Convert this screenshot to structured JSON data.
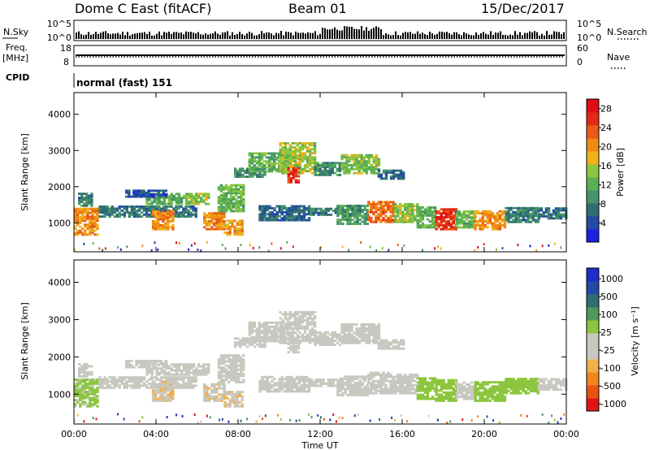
{
  "header": {
    "station": "Dome C East (fitACF)",
    "beam": "Beam 01",
    "date": "15/Dec/2017"
  },
  "panels": {
    "nsky_label": "N.Sky",
    "nsearch_label": "N.Search",
    "nsky_ticks": [
      "10^5",
      "10^0"
    ],
    "nsearch_ticks": [
      "10^5",
      "10^0"
    ],
    "freq_label_1": "Freq.",
    "freq_label_2": "[MHz]",
    "freq_ticks": [
      "18",
      "8"
    ],
    "nave_label": "Nave",
    "nave_ticks": [
      "60",
      "0"
    ],
    "cpid_label": "CPID",
    "cpid_value": "normal (fast) 151"
  },
  "colors": {
    "power": [
      "#1d20e0",
      "#234aa6",
      "#2f6f73",
      "#47936a",
      "#5ab054",
      "#8cc63e",
      "#f0b21b",
      "#f08a14",
      "#eb5a17",
      "#e32a16",
      "#e00d12"
    ],
    "velocity": [
      "#e01414",
      "#ea5212",
      "#f0861c",
      "#f2b04a",
      "#c8c8c0",
      "#c8c8c0",
      "#8cc63e",
      "#4e9a5c",
      "#2f6f73",
      "#234aa6",
      "#1d2fc8"
    ]
  },
  "chart_data": [
    {
      "type": "heatmap",
      "name": "power",
      "ylabel": "Slant Range [km]",
      "y_ticks": [
        "1000",
        "2000",
        "3000",
        "4000"
      ],
      "ylim": [
        200,
        4600
      ],
      "x_ticks": [
        "00:00",
        "04:00",
        "08:00",
        "12:00",
        "16:00",
        "20:00",
        "00:00"
      ],
      "xlim": [
        0,
        24
      ],
      "colorbar": {
        "label": "Power [dB]",
        "ticks": [
          "4",
          "8",
          "12",
          "16",
          "20",
          "24",
          "28"
        ],
        "range": [
          0,
          30
        ]
      },
      "regions": [
        {
          "t0": 0.0,
          "t1": 1.2,
          "r0": 650,
          "r1": 1400,
          "v": 20
        },
        {
          "t0": 0.2,
          "t1": 0.9,
          "r0": 1450,
          "r1": 1800,
          "v": 8
        },
        {
          "t0": 1.2,
          "t1": 6.0,
          "r0": 1150,
          "r1": 1450,
          "v": 7
        },
        {
          "t0": 3.5,
          "t1": 5.3,
          "r0": 1500,
          "r1": 1800,
          "v": 12
        },
        {
          "t0": 5.3,
          "t1": 6.6,
          "r0": 1500,
          "r1": 1800,
          "v": 14
        },
        {
          "t0": 2.5,
          "t1": 4.5,
          "r0": 1700,
          "r1": 1900,
          "v": 5
        },
        {
          "t0": 3.8,
          "t1": 4.8,
          "r0": 800,
          "r1": 1350,
          "v": 20
        },
        {
          "t0": 6.3,
          "t1": 7.3,
          "r0": 800,
          "r1": 1250,
          "v": 21
        },
        {
          "t0": 7.3,
          "t1": 8.2,
          "r0": 650,
          "r1": 1050,
          "v": 19
        },
        {
          "t0": 7.0,
          "t1": 8.3,
          "r0": 1300,
          "r1": 2050,
          "v": 13
        },
        {
          "t0": 7.8,
          "t1": 9.3,
          "r0": 2250,
          "r1": 2500,
          "v": 9
        },
        {
          "t0": 8.5,
          "t1": 10.2,
          "r0": 2400,
          "r1": 2900,
          "v": 12
        },
        {
          "t0": 10.0,
          "t1": 11.7,
          "r0": 2350,
          "r1": 3200,
          "v": 15
        },
        {
          "t0": 10.4,
          "t1": 10.9,
          "r0": 2100,
          "r1": 2500,
          "v": 26
        },
        {
          "t0": 11.7,
          "t1": 12.9,
          "r0": 2300,
          "r1": 2650,
          "v": 9
        },
        {
          "t0": 13.0,
          "t1": 14.8,
          "r0": 2350,
          "r1": 2900,
          "v": 14
        },
        {
          "t0": 14.8,
          "t1": 16.0,
          "r0": 2200,
          "r1": 2450,
          "v": 6
        },
        {
          "t0": 9.0,
          "t1": 11.5,
          "r0": 1050,
          "r1": 1450,
          "v": 6
        },
        {
          "t0": 11.5,
          "t1": 12.8,
          "r0": 1200,
          "r1": 1400,
          "v": 8
        },
        {
          "t0": 12.8,
          "t1": 14.3,
          "r0": 950,
          "r1": 1450,
          "v": 10
        },
        {
          "t0": 14.3,
          "t1": 15.6,
          "r0": 1000,
          "r1": 1600,
          "v": 22
        },
        {
          "t0": 15.6,
          "t1": 16.7,
          "r0": 1000,
          "r1": 1500,
          "v": 14
        },
        {
          "t0": 16.7,
          "t1": 17.6,
          "r0": 850,
          "r1": 1450,
          "v": 12
        },
        {
          "t0": 17.6,
          "t1": 18.6,
          "r0": 800,
          "r1": 1400,
          "v": 26
        },
        {
          "t0": 18.6,
          "t1": 19.5,
          "r0": 850,
          "r1": 1300,
          "v": 13
        },
        {
          "t0": 19.5,
          "t1": 21.0,
          "r0": 800,
          "r1": 1350,
          "v": 20
        },
        {
          "t0": 21.0,
          "t1": 22.6,
          "r0": 1000,
          "r1": 1400,
          "v": 8
        },
        {
          "t0": 22.6,
          "t1": 24.0,
          "r0": 1100,
          "r1": 1400,
          "v": 7
        }
      ]
    },
    {
      "type": "heatmap",
      "name": "velocity",
      "ylabel": "Slant Range [km]",
      "y_ticks": [
        "1000",
        "2000",
        "3000",
        "4000"
      ],
      "ylim": [
        200,
        4600
      ],
      "x_ticks": [
        "00:00",
        "04:00",
        "08:00",
        "12:00",
        "16:00",
        "20:00",
        "00:00"
      ],
      "xlim": [
        0,
        24
      ],
      "xlabel": "Time UT",
      "colorbar": {
        "label": "Velocity [m s⁻¹]",
        "ticks": [
          "1000",
          "500",
          "100",
          "25",
          "-25",
          "-100",
          "-500",
          "-1000"
        ],
        "range": [
          -1200,
          1200
        ]
      },
      "regions": [
        {
          "t0": 0.0,
          "t1": 1.2,
          "r0": 650,
          "r1": 1400,
          "v": 150
        },
        {
          "t0": 0.2,
          "t1": 0.9,
          "r0": 1450,
          "r1": 1800,
          "v": 0
        },
        {
          "t0": 1.2,
          "t1": 6.0,
          "r0": 1150,
          "r1": 1450,
          "v": -250
        },
        {
          "t0": 3.5,
          "t1": 5.3,
          "r0": 1500,
          "r1": 1800,
          "v": 0
        },
        {
          "t0": 5.3,
          "t1": 6.6,
          "r0": 1500,
          "r1": 1800,
          "v": 0
        },
        {
          "t0": 2.5,
          "t1": 4.5,
          "r0": 1700,
          "r1": 1900,
          "v": 0
        },
        {
          "t0": 3.8,
          "t1": 4.8,
          "r0": 800,
          "r1": 1350,
          "v": -300
        },
        {
          "t0": 6.3,
          "t1": 7.3,
          "r0": 800,
          "r1": 1250,
          "v": -300
        },
        {
          "t0": 7.3,
          "t1": 8.2,
          "r0": 650,
          "r1": 1050,
          "v": -300
        },
        {
          "t0": 7.0,
          "t1": 8.3,
          "r0": 1300,
          "r1": 2050,
          "v": 0
        },
        {
          "t0": 7.8,
          "t1": 9.3,
          "r0": 2250,
          "r1": 2500,
          "v": 0
        },
        {
          "t0": 8.5,
          "t1": 10.2,
          "r0": 2400,
          "r1": 2900,
          "v": 0
        },
        {
          "t0": 10.0,
          "t1": 11.7,
          "r0": 2350,
          "r1": 3200,
          "v": 0
        },
        {
          "t0": 10.4,
          "t1": 10.9,
          "r0": 2100,
          "r1": 2500,
          "v": 0
        },
        {
          "t0": 11.7,
          "t1": 12.9,
          "r0": 2300,
          "r1": 2650,
          "v": 0
        },
        {
          "t0": 13.0,
          "t1": 14.8,
          "r0": 2350,
          "r1": 2900,
          "v": 0
        },
        {
          "t0": 14.8,
          "t1": 16.0,
          "r0": 2200,
          "r1": 2450,
          "v": 0
        },
        {
          "t0": 9.0,
          "t1": 11.5,
          "r0": 1050,
          "r1": 1450,
          "v": -200
        },
        {
          "t0": 11.5,
          "t1": 12.8,
          "r0": 1200,
          "r1": 1400,
          "v": 0
        },
        {
          "t0": 12.8,
          "t1": 14.3,
          "r0": 950,
          "r1": 1450,
          "v": -250
        },
        {
          "t0": 14.3,
          "t1": 15.6,
          "r0": 1000,
          "r1": 1600,
          "v": -250
        },
        {
          "t0": 15.6,
          "t1": 16.7,
          "r0": 1000,
          "r1": 1500,
          "v": -150
        },
        {
          "t0": 16.7,
          "t1": 17.6,
          "r0": 850,
          "r1": 1450,
          "v": 200
        },
        {
          "t0": 17.6,
          "t1": 18.6,
          "r0": 800,
          "r1": 1400,
          "v": 200
        },
        {
          "t0": 18.6,
          "t1": 19.5,
          "r0": 850,
          "r1": 1300,
          "v": -200
        },
        {
          "t0": 19.5,
          "t1": 21.0,
          "r0": 800,
          "r1": 1350,
          "v": 200
        },
        {
          "t0": 21.0,
          "t1": 22.6,
          "r0": 1000,
          "r1": 1400,
          "v": 200
        },
        {
          "t0": 22.6,
          "t1": 24.0,
          "r0": 1100,
          "r1": 1400,
          "v": 0
        }
      ]
    }
  ]
}
